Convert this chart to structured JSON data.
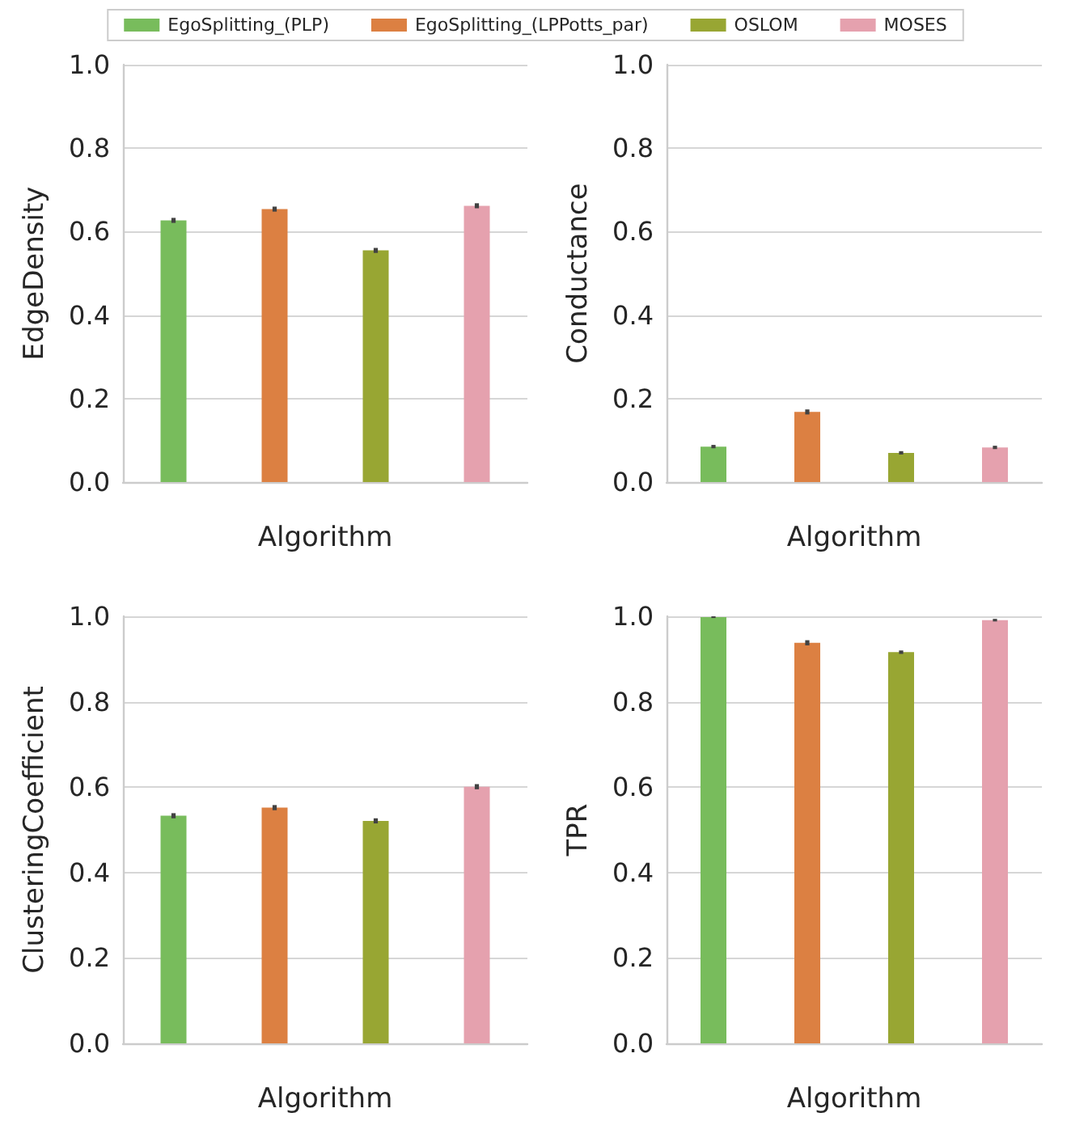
{
  "chart_data": [
    {
      "type": "bar",
      "ylabel": "EdgeDensity",
      "xlabel": "Algorithm",
      "categories": [
        null,
        null,
        null,
        null
      ],
      "ylim": [
        0,
        1
      ],
      "yticks": [
        {
          "value": 0,
          "label": "0.0"
        },
        {
          "value": 0.2,
          "label": "0.2"
        },
        {
          "value": 0.4,
          "label": "0.4"
        },
        {
          "value": 0.6,
          "label": "0.6"
        },
        {
          "value": 0.8,
          "label": "0.8"
        },
        {
          "value": 1,
          "label": "1.0"
        }
      ],
      "grid": "y",
      "legend": "top",
      "series": [
        {
          "name": "EgoSplitting_(PLP)",
          "color": "#78bc5c",
          "values": [
            0.627,
            null,
            null,
            null
          ],
          "errors": [
            0.006,
            null,
            null,
            null
          ]
        },
        {
          "name": "EgoSplitting_(LPPotts_par)",
          "color": "#dc8042",
          "values": [
            null,
            0.654,
            null,
            null
          ],
          "errors": [
            null,
            0.006,
            null,
            null
          ]
        },
        {
          "name": "OSLOM",
          "color": "#98a633",
          "values": [
            null,
            null,
            0.555,
            null
          ],
          "errors": [
            null,
            null,
            0.006,
            null
          ]
        },
        {
          "name": "MOSES",
          "color": "#e5a1ae",
          "values": [
            null,
            null,
            null,
            0.662
          ],
          "errors": [
            null,
            null,
            null,
            0.006
          ]
        }
      ]
    },
    {
      "type": "bar",
      "ylabel": "Conductance",
      "xlabel": "Algorithm",
      "categories": [
        null,
        null,
        null,
        null
      ],
      "ylim": [
        0,
        1
      ],
      "yticks": [
        {
          "value": 0,
          "label": "0.0"
        },
        {
          "value": 0.2,
          "label": "0.2"
        },
        {
          "value": 0.4,
          "label": "0.4"
        },
        {
          "value": 0.6,
          "label": "0.6"
        },
        {
          "value": 0.8,
          "label": "0.8"
        },
        {
          "value": 1,
          "label": "1.0"
        }
      ],
      "grid": "y",
      "series": [
        {
          "color": "#78bc5c",
          "values": [
            0.085,
            null,
            null,
            null
          ],
          "errors": [
            0.004,
            null,
            null,
            null
          ]
        },
        {
          "color": "#dc8042",
          "values": [
            null,
            0.168,
            null,
            null
          ],
          "errors": [
            null,
            0.006,
            null,
            null
          ]
        },
        {
          "color": "#98a633",
          "values": [
            null,
            null,
            0.07,
            null
          ],
          "errors": [
            null,
            null,
            0.004,
            null
          ]
        },
        {
          "color": "#e5a1ae",
          "values": [
            null,
            null,
            null,
            0.083
          ],
          "errors": [
            null,
            null,
            null,
            0.004
          ]
        }
      ]
    },
    {
      "type": "bar",
      "ylabel": "ClusteringCoefficient",
      "xlabel": "Algorithm",
      "categories": [
        null,
        null,
        null,
        null
      ],
      "ylim": [
        0,
        1
      ],
      "yticks": [
        {
          "value": 0,
          "label": "0.0"
        },
        {
          "value": 0.2,
          "label": "0.2"
        },
        {
          "value": 0.4,
          "label": "0.4"
        },
        {
          "value": 0.6,
          "label": "0.6"
        },
        {
          "value": 0.8,
          "label": "0.8"
        },
        {
          "value": 1,
          "label": "1.0"
        }
      ],
      "grid": "y",
      "series": [
        {
          "color": "#78bc5c",
          "values": [
            0.533,
            null,
            null,
            null
          ],
          "errors": [
            0.006,
            null,
            null,
            null
          ]
        },
        {
          "color": "#dc8042",
          "values": [
            null,
            0.552,
            null,
            null
          ],
          "errors": [
            null,
            0.006,
            null,
            null
          ]
        },
        {
          "color": "#98a633",
          "values": [
            null,
            null,
            0.521,
            null
          ],
          "errors": [
            null,
            null,
            0.006,
            null
          ]
        },
        {
          "color": "#e5a1ae",
          "values": [
            null,
            null,
            null,
            0.601
          ],
          "errors": [
            null,
            null,
            null,
            0.006
          ]
        }
      ]
    },
    {
      "type": "bar",
      "ylabel": "TPR",
      "xlabel": "Algorithm",
      "categories": [
        null,
        null,
        null,
        null
      ],
      "ylim": [
        0,
        1
      ],
      "yticks": [
        {
          "value": 0,
          "label": "0.0"
        },
        {
          "value": 0.2,
          "label": "0.2"
        },
        {
          "value": 0.4,
          "label": "0.4"
        },
        {
          "value": 0.6,
          "label": "0.6"
        },
        {
          "value": 0.8,
          "label": "0.8"
        },
        {
          "value": 1,
          "label": "1.0"
        }
      ],
      "grid": "y",
      "series": [
        {
          "color": "#78bc5c",
          "values": [
            0.998,
            null,
            null,
            null
          ],
          "errors": [
            0.002,
            null,
            null,
            null
          ]
        },
        {
          "color": "#dc8042",
          "values": [
            null,
            0.938,
            null,
            null
          ],
          "errors": [
            null,
            0.006,
            null,
            null
          ]
        },
        {
          "color": "#98a633",
          "values": [
            null,
            null,
            0.916,
            null
          ],
          "errors": [
            null,
            null,
            0.004,
            null
          ]
        },
        {
          "color": "#e5a1ae",
          "values": [
            null,
            null,
            null,
            0.991
          ],
          "errors": [
            null,
            null,
            null,
            0.003
          ]
        }
      ]
    }
  ]
}
